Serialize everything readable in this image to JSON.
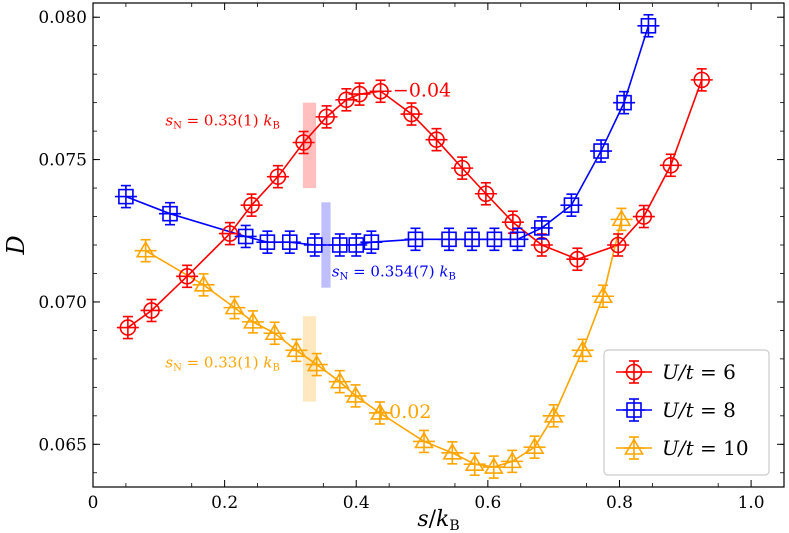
{
  "chart_data": {
    "type": "line",
    "xlabel": "s/k_B",
    "ylabel": "D",
    "xlim": [
      0.0,
      1.05
    ],
    "ylim": [
      0.0635,
      0.0805
    ],
    "x_ticks": [
      "0",
      "0.2",
      "0.4",
      "0.6",
      "0.8",
      "1.0"
    ],
    "y_ticks": [
      "0.065",
      "0.070",
      "0.075",
      "0.080"
    ],
    "legend_position": "bottom-right",
    "series": [
      {
        "name": "U/t = 6",
        "label_var": "U/t",
        "label_val": "= 6",
        "color": "#ff0000",
        "marker": "circle",
        "x": [
          0.053,
          0.089,
          0.143,
          0.208,
          0.241,
          0.281,
          0.32,
          0.355,
          0.385,
          0.405,
          0.437,
          0.484,
          0.522,
          0.561,
          0.597,
          0.638,
          0.682,
          0.736,
          0.798,
          0.837,
          0.878,
          0.925
        ],
        "y": [
          0.0691,
          0.0697,
          0.0709,
          0.0724,
          0.0734,
          0.0744,
          0.0756,
          0.0765,
          0.0771,
          0.0773,
          0.0774,
          0.0766,
          0.0757,
          0.0747,
          0.0738,
          0.0728,
          0.072,
          0.0715,
          0.072,
          0.073,
          0.0748,
          0.0778
        ]
      },
      {
        "name": "U/t = 8",
        "label_var": "U/t",
        "label_val": "= 8",
        "color": "#0000ff",
        "marker": "square",
        "x": [
          0.05,
          0.117,
          0.232,
          0.265,
          0.299,
          0.337,
          0.375,
          0.4,
          0.423,
          0.49,
          0.541,
          0.576,
          0.61,
          0.645,
          0.682,
          0.727,
          0.772,
          0.807,
          0.844
        ],
        "y": [
          0.0737,
          0.0731,
          0.0723,
          0.0721,
          0.0721,
          0.072,
          0.072,
          0.072,
          0.0721,
          0.0722,
          0.0722,
          0.0722,
          0.0722,
          0.0722,
          0.0726,
          0.0734,
          0.0753,
          0.077,
          0.0797
        ]
      },
      {
        "name": "U/t = 10",
        "label_var": "U/t",
        "label_val": "= 10",
        "color": "#ffa500",
        "marker": "triangle",
        "x": [
          0.08,
          0.168,
          0.215,
          0.243,
          0.276,
          0.309,
          0.34,
          0.375,
          0.399,
          0.436,
          0.503,
          0.546,
          0.58,
          0.609,
          0.637,
          0.671,
          0.7,
          0.744,
          0.775,
          0.803
        ],
        "y": [
          0.0718,
          0.0706,
          0.0698,
          0.0693,
          0.0689,
          0.0683,
          0.0678,
          0.0672,
          0.0667,
          0.0661,
          0.0651,
          0.0647,
          0.0643,
          0.0642,
          0.0644,
          0.0649,
          0.066,
          0.0683,
          0.0702,
          0.0729
        ]
      }
    ],
    "bands": [
      {
        "name": "U/t = 6 transition",
        "color": "#ff0000",
        "x_from": 0.319,
        "x_to": 0.339,
        "y_from": 0.074,
        "y_to": 0.077
      },
      {
        "name": "U/t = 8 transition",
        "color": "#0000ff",
        "x_from": 0.347,
        "x_to": 0.361,
        "y_from": 0.0705,
        "y_to": 0.0735
      },
      {
        "name": "U/t = 10 transition",
        "color": "#ffa500",
        "x_from": 0.319,
        "x_to": 0.339,
        "y_from": 0.0665,
        "y_to": 0.0695
      }
    ],
    "annotations": [
      {
        "name": "sn-label-u6",
        "text": "s_N = 0.33(1) k_B",
        "main": "s",
        "sub": "N",
        "mid": " = 0.33(1) ",
        "k": "k",
        "ksub": "B",
        "color": "#ff0000",
        "x": 0.11,
        "y": 0.0762,
        "anchor": "start"
      },
      {
        "name": "sn-label-u8",
        "text": "s_N = 0.354(7) k_B",
        "main": "s",
        "sub": "N",
        "mid": " = 0.354(7) ",
        "k": "k",
        "ksub": "B",
        "color": "#0000ff",
        "x": 0.363,
        "y": 0.0709,
        "anchor": "start"
      },
      {
        "name": "sn-label-u10",
        "text": "s_N = 0.33(1) k_B",
        "main": "s",
        "sub": "N",
        "mid": " = 0.33(1) ",
        "k": "k",
        "ksub": "B",
        "color": "#ffa500",
        "x": 0.11,
        "y": 0.0677,
        "anchor": "start"
      }
    ],
    "offset_labels": [
      {
        "name": "offset-label-u6",
        "text": "−0.04",
        "color": "#ff0000",
        "x": 0.5,
        "y": 0.0774
      },
      {
        "name": "offset-label-u10",
        "text": "+0.02",
        "color": "#ffa500",
        "x": 0.47,
        "y": 0.0661
      }
    ]
  }
}
